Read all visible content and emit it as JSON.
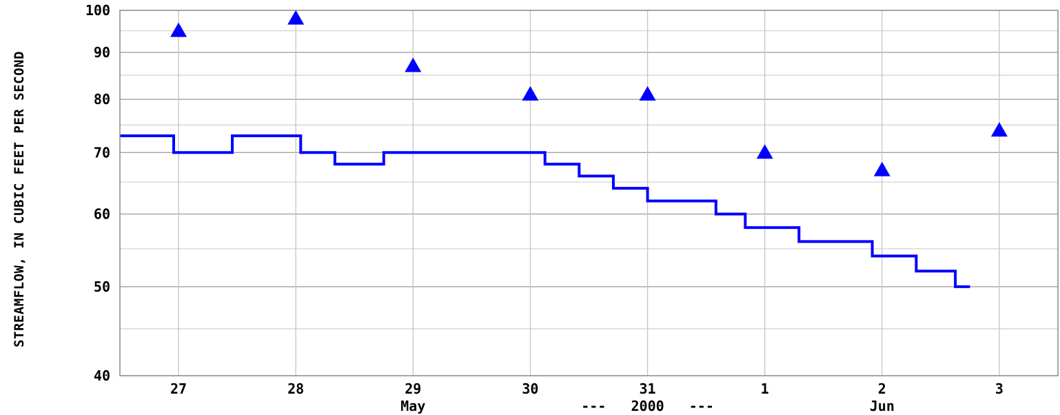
{
  "chart_data": {
    "type": "line",
    "ylabel": "STREAMFLOW, IN CUBIC FEET PER SECOND",
    "yscale": "log",
    "ylim": [
      40,
      100
    ],
    "y_ticks": [
      "40",
      "50",
      "60",
      "70",
      "80",
      "90",
      "100"
    ],
    "xlim": [
      "2000-05-26T12:00",
      "2000-06-03T12:00"
    ],
    "x_ticks": [
      "27",
      "28",
      "29",
      "30",
      "31",
      "1",
      "2",
      "3"
    ],
    "x_month_labels": [
      "May",
      "Jun"
    ],
    "x_year_label": "---   2000   ---",
    "grid": true,
    "series": [
      {
        "kind": "step-line",
        "color": "#0000ff",
        "points": [
          [
            "2000-05-26T12:00",
            73
          ],
          [
            "2000-05-26T23:00",
            70
          ],
          [
            "2000-05-27T11:00",
            73
          ],
          [
            "2000-05-28T01:00",
            70
          ],
          [
            "2000-05-28T08:00",
            68
          ],
          [
            "2000-05-28T18:00",
            70
          ],
          [
            "2000-05-30T03:00",
            68
          ],
          [
            "2000-05-30T10:00",
            66
          ],
          [
            "2000-05-30T17:00",
            64
          ],
          [
            "2000-05-31T00:00",
            62
          ],
          [
            "2000-05-31T14:00",
            60
          ],
          [
            "2000-05-31T20:00",
            58
          ],
          [
            "2000-06-01T07:00",
            56
          ],
          [
            "2000-06-01T22:00",
            54
          ],
          [
            "2000-06-02T07:00",
            52
          ],
          [
            "2000-06-02T15:00",
            50
          ],
          [
            "2000-06-02T18:00",
            50
          ]
        ]
      },
      {
        "kind": "markers",
        "marker": "triangle",
        "color": "#0000ff",
        "points": [
          [
            "2000-05-27T00:00",
            95
          ],
          [
            "2000-05-28T00:00",
            98
          ],
          [
            "2000-05-29T00:00",
            87
          ],
          [
            "2000-05-30T00:00",
            81
          ],
          [
            "2000-05-31T00:00",
            81
          ],
          [
            "2000-06-01T00:00",
            70
          ],
          [
            "2000-06-02T00:00",
            67
          ],
          [
            "2000-06-03T00:00",
            74
          ]
        ]
      }
    ]
  }
}
